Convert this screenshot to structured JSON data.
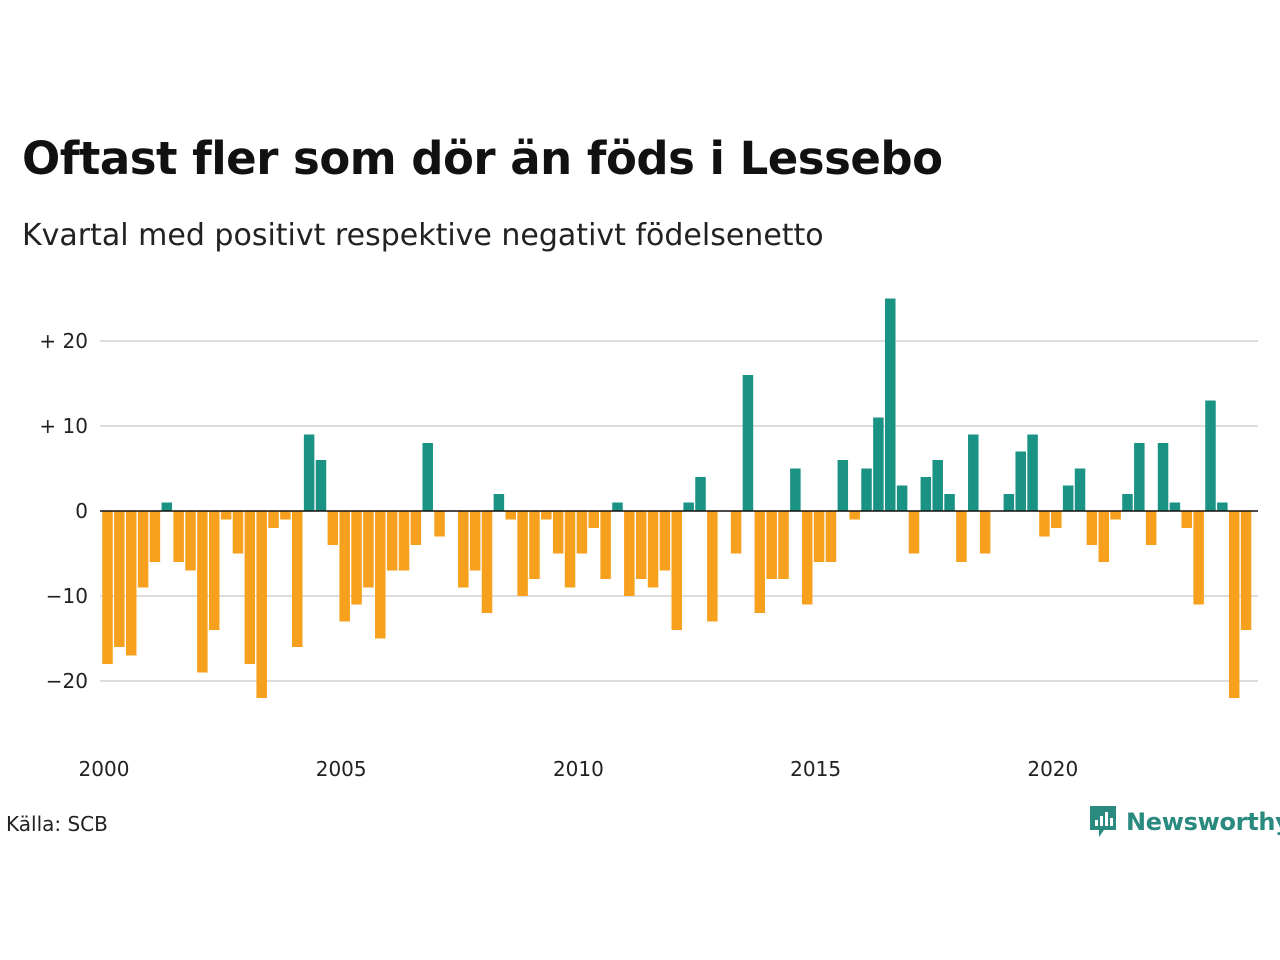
{
  "title": "Oftast fler som dör än föds i Lessebo",
  "subtitle": "Kvartal med positivt respektive negativt födelsenetto",
  "source": "Källa: SCB",
  "brand": "Newsworthy",
  "colors": {
    "positive": "#1a9384",
    "negative": "#f7a01d",
    "grid": "#dddddd",
    "axis": "#111111"
  },
  "chart_data": {
    "type": "bar",
    "x_start": "2000 Q1",
    "frequency": "quarterly",
    "x_ticks": [
      "2000",
      "2005",
      "2010",
      "2015",
      "2020"
    ],
    "y_ticks": [
      "+ 20",
      "+ 10",
      "0",
      "−10",
      "−20"
    ],
    "ylim": [
      -25,
      25
    ],
    "grid": true,
    "values": [
      -18,
      -16,
      -17,
      -9,
      -6,
      1,
      -6,
      -7,
      -19,
      -14,
      -1,
      -5,
      -18,
      -22,
      -2,
      -1,
      -16,
      9,
      6,
      -4,
      -13,
      -11,
      -9,
      -15,
      -7,
      -7,
      -4,
      8,
      -3,
      0,
      -9,
      -7,
      -12,
      2,
      -1,
      -10,
      -8,
      -1,
      -5,
      -9,
      -5,
      -2,
      -8,
      1,
      -10,
      -8,
      -9,
      -7,
      -14,
      1,
      4,
      -13,
      0,
      -5,
      16,
      -12,
      -8,
      -8,
      5,
      -11,
      -6,
      -6,
      6,
      -1,
      5,
      11,
      25,
      3,
      -5,
      4,
      6,
      2,
      -6,
      9,
      -5,
      0,
      2,
      7,
      9,
      -3,
      -2,
      3,
      5,
      -4,
      -6,
      -1,
      2,
      8,
      -4,
      8,
      1,
      -2,
      -11,
      13,
      1,
      -22,
      -14
    ]
  }
}
